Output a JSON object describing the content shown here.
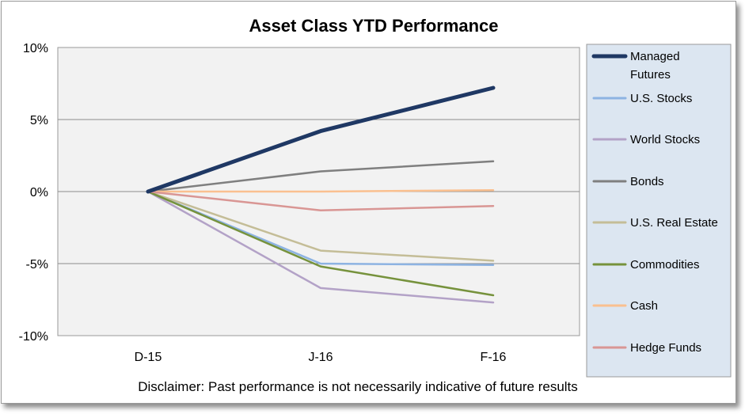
{
  "chart_data": {
    "type": "line",
    "title": "Asset Class YTD Performance",
    "xlabel": "",
    "ylabel": "",
    "categories": [
      "D-15",
      "J-16",
      "F-16"
    ],
    "ylim": [
      -10,
      10
    ],
    "yticks": [
      10,
      5,
      0,
      -5,
      -10
    ],
    "ytick_labels": [
      "10%",
      "5%",
      "0%",
      "-5%",
      "-10%"
    ],
    "grid": true,
    "legend_position": "right",
    "series": [
      {
        "name": "Managed Futures",
        "values": [
          0,
          4.2,
          7.2
        ],
        "color": "#1f3864",
        "width": 5
      },
      {
        "name": "U.S. Stocks",
        "values": [
          0,
          -5.0,
          -5.1
        ],
        "color": "#8db3e2",
        "width": 2.5
      },
      {
        "name": "World Stocks",
        "values": [
          0,
          -6.7,
          -7.7
        ],
        "color": "#b3a2c7",
        "width": 2.5
      },
      {
        "name": "Bonds",
        "values": [
          0,
          1.4,
          2.1
        ],
        "color": "#7f7f7f",
        "width": 2.5
      },
      {
        "name": "U.S. Real Estate",
        "values": [
          0,
          -4.1,
          -4.8
        ],
        "color": "#c4bd97",
        "width": 2.5
      },
      {
        "name": "Commodities",
        "values": [
          0,
          -5.2,
          -7.2
        ],
        "color": "#76923c",
        "width": 2.5
      },
      {
        "name": "Cash",
        "values": [
          0,
          0.0,
          0.1
        ],
        "color": "#fac090",
        "width": 2.5
      },
      {
        "name": "Hedge Funds",
        "values": [
          0,
          -1.3,
          -1.0
        ],
        "color": "#d99694",
        "width": 2.5
      }
    ],
    "legend_labels": [
      [
        "Managed",
        "Futures"
      ],
      [
        "U.S. Stocks"
      ],
      [
        "World Stocks"
      ],
      [
        "Bonds"
      ],
      [
        "U.S. Real Estate"
      ],
      [
        "Commodities"
      ],
      [
        "Cash"
      ],
      [
        "Hedge Funds"
      ]
    ]
  },
  "disclaimer": "Disclaimer: Past performance is not necessarily indicative of future results",
  "colors": {
    "plot_background": "#f2f2f2",
    "legend_background": "#dce6f1",
    "gridline": "#8c8c8c"
  }
}
